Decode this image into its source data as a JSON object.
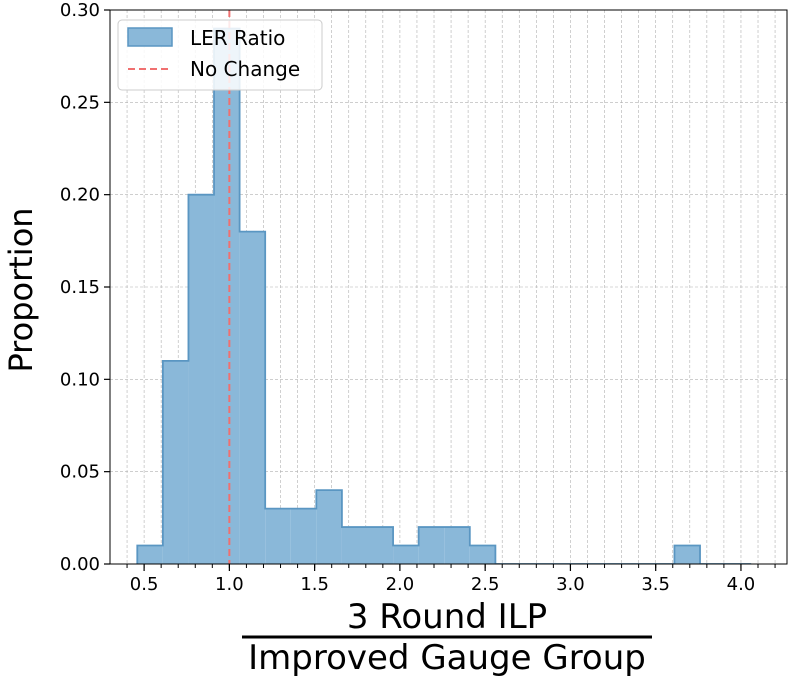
{
  "chart_data": {
    "type": "bar",
    "title": "",
    "ylabel": "Proportion",
    "xlabel_numerator": "3 Round ILP",
    "xlabel_denominator": "Improved Gauge Group",
    "xlim": [
      0.3,
      4.27
    ],
    "ylim": [
      0,
      0.3
    ],
    "x_ticks": [
      0.5,
      1.0,
      1.5,
      2.0,
      2.5,
      3.0,
      3.5,
      4.0
    ],
    "x_tick_labels": [
      "0.5",
      "1.0",
      "1.5",
      "2.0",
      "2.5",
      "3.0",
      "3.5",
      "4.0"
    ],
    "y_ticks": [
      0.0,
      0.05,
      0.1,
      0.15,
      0.2,
      0.25,
      0.3
    ],
    "y_tick_labels": [
      "0.00",
      "0.05",
      "0.10",
      "0.15",
      "0.20",
      "0.25",
      "0.30"
    ],
    "grid": true,
    "legend_position": "top-left",
    "series": [
      {
        "name": "LER Ratio",
        "bin_edges": [
          0.46,
          0.61,
          0.76,
          0.91,
          1.06,
          1.21,
          1.36,
          1.51,
          1.66,
          1.81,
          1.96,
          2.11,
          2.26,
          2.41,
          2.56,
          2.71,
          2.86,
          3.01,
          3.16,
          3.31,
          3.46,
          3.61,
          3.76,
          3.91,
          4.06
        ],
        "values": [
          0.01,
          0.11,
          0.2,
          0.29,
          0.18,
          0.03,
          0.03,
          0.04,
          0.02,
          0.02,
          0.01,
          0.02,
          0.02,
          0.01,
          0.0,
          0.0,
          0.0,
          0.0,
          0.0,
          0.0,
          0.0,
          0.01,
          0.0,
          0.0
        ],
        "color": "#8ab8d9",
        "edge_color": "#5a96c2"
      }
    ],
    "reference_line": {
      "name": "No Change",
      "x": 1.0,
      "color": "#f07070"
    }
  }
}
